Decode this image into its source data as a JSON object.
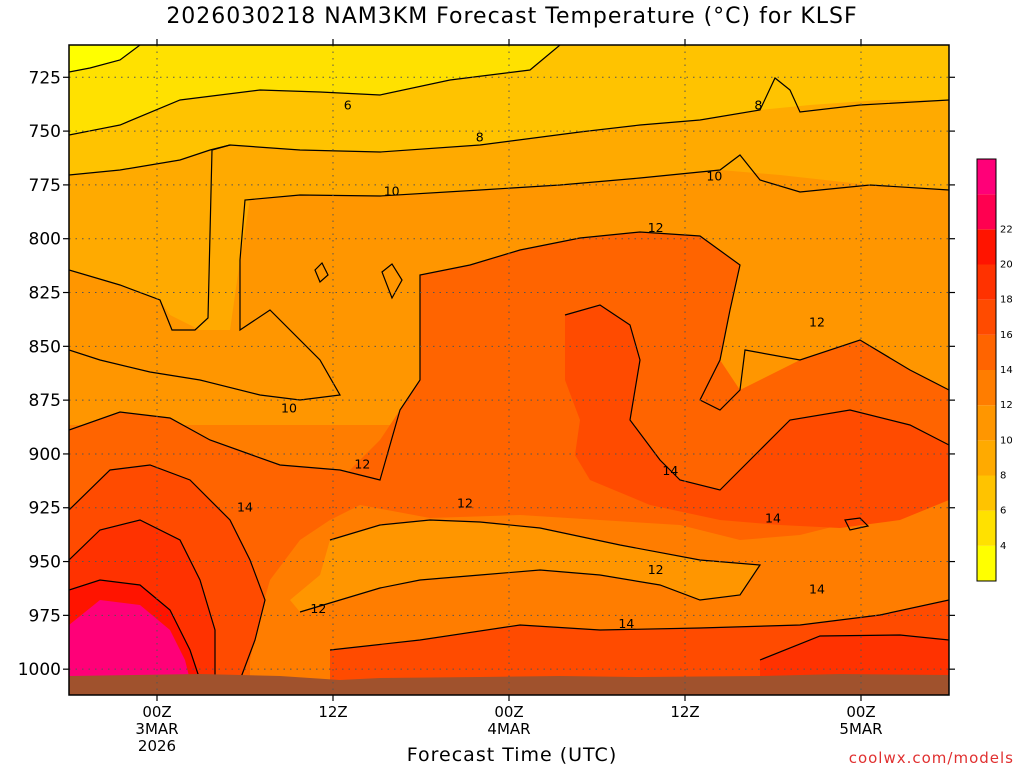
{
  "page": {
    "title": "2026030218 NAM3KM Forecast Temperature (°C) for KLSF",
    "credit": "coolwx.com/models"
  },
  "colors": {
    "background": "#ffffff",
    "terrain": "#a0522d",
    "contour_line": "#000000",
    "credit_text": "#e03030",
    "scale": [
      "#ffff00",
      "#ffe100",
      "#ffc300",
      "#ffaa00",
      "#ff9600",
      "#ff7d00",
      "#ff6400",
      "#ff4b00",
      "#ff3200",
      "#ff1400",
      "#ff0050",
      "#ff0078"
    ]
  },
  "chart_data": {
    "type": "heatmap",
    "title": "2026030218 NAM3KM Forecast Temperature (°C) for KLSF",
    "xlabel": "Forecast Time (UTC)",
    "ylabel": "",
    "y_axis": {
      "inverted": true,
      "ticks": [
        "725",
        "750",
        "775",
        "800",
        "825",
        "850",
        "875",
        "900",
        "925",
        "950",
        "975",
        "1000"
      ],
      "range": [
        710,
        1012
      ]
    },
    "x_axis": {
      "ticks": [
        {
          "hour": 6,
          "lines": [
            "00Z",
            "3MAR",
            "2026"
          ]
        },
        {
          "hour": 18,
          "lines": [
            "12Z"
          ]
        },
        {
          "hour": 30,
          "lines": [
            "00Z",
            "4MAR"
          ]
        },
        {
          "hour": 42,
          "lines": [
            "12Z"
          ]
        },
        {
          "hour": 54,
          "lines": [
            "00Z",
            "5MAR"
          ]
        }
      ],
      "range": [
        0,
        60
      ]
    },
    "grid": true,
    "colorbar": {
      "location": "right",
      "labels": [
        "4",
        "6",
        "8",
        "10",
        "12",
        "14",
        "16",
        "18",
        "20",
        "22"
      ],
      "levels": [
        2,
        4,
        6,
        8,
        10,
        12,
        14,
        16,
        18,
        20,
        22,
        24
      ]
    },
    "contour_labels": [
      {
        "text": "6",
        "hour": 19,
        "hpa": 738
      },
      {
        "text": "8",
        "hour": 28,
        "hpa": 753
      },
      {
        "text": "8",
        "hour": 47,
        "hpa": 738
      },
      {
        "text": "10",
        "hour": 22,
        "hpa": 778
      },
      {
        "text": "10",
        "hour": 44,
        "hpa": 771
      },
      {
        "text": "10",
        "hour": 15,
        "hpa": 879
      },
      {
        "text": "12",
        "hour": 40,
        "hpa": 795
      },
      {
        "text": "12",
        "hour": 51,
        "hpa": 839
      },
      {
        "text": "12",
        "hour": 20,
        "hpa": 905
      },
      {
        "text": "12",
        "hour": 27,
        "hpa": 923
      },
      {
        "text": "12",
        "hour": 17,
        "hpa": 972
      },
      {
        "text": "12",
        "hour": 40,
        "hpa": 954
      },
      {
        "text": "14",
        "hour": 12,
        "hpa": 925
      },
      {
        "text": "14",
        "hour": 41,
        "hpa": 908
      },
      {
        "text": "14",
        "hour": 48,
        "hpa": 930
      },
      {
        "text": "14",
        "hour": 38,
        "hpa": 979
      },
      {
        "text": "14",
        "hour": 51,
        "hpa": 963
      }
    ]
  }
}
